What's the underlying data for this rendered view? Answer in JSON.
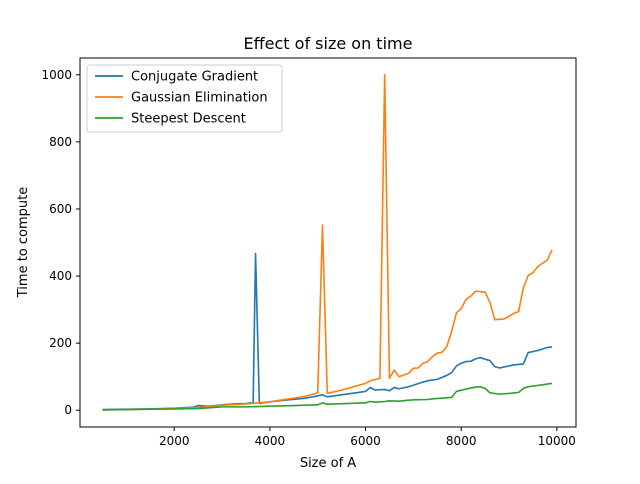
{
  "chart_data": {
    "type": "line",
    "title": "Effect of size on time",
    "xlabel": "Size of A",
    "ylabel": "Time to compute",
    "xlim": [
      30,
      10400
    ],
    "ylim": [
      -50,
      1050
    ],
    "x_ticks": [
      2000,
      4000,
      6000,
      8000,
      10000
    ],
    "y_ticks": [
      0,
      200,
      400,
      600,
      800,
      1000
    ],
    "grid": false,
    "legend_position": "top-left",
    "series": [
      {
        "name": "Conjugate Gradient",
        "color": "#1f77b4",
        "points": [
          [
            500,
            2
          ],
          [
            1000,
            3
          ],
          [
            1500,
            4
          ],
          [
            2000,
            6
          ],
          [
            2400,
            9
          ],
          [
            2500,
            14
          ],
          [
            2700,
            12
          ],
          [
            3000,
            16
          ],
          [
            3300,
            19
          ],
          [
            3500,
            20
          ],
          [
            3600,
            22
          ],
          [
            3650,
            20
          ],
          [
            3700,
            467
          ],
          [
            3780,
            20
          ],
          [
            4000,
            25
          ],
          [
            4300,
            30
          ],
          [
            4700,
            35
          ],
          [
            4900,
            40
          ],
          [
            5100,
            46
          ],
          [
            5200,
            40
          ],
          [
            5500,
            46
          ],
          [
            5800,
            52
          ],
          [
            6000,
            56
          ],
          [
            6100,
            68
          ],
          [
            6200,
            60
          ],
          [
            6400,
            62
          ],
          [
            6500,
            58
          ],
          [
            6600,
            68
          ],
          [
            6700,
            64
          ],
          [
            6900,
            70
          ],
          [
            7200,
            84
          ],
          [
            7300,
            88
          ],
          [
            7500,
            92
          ],
          [
            7700,
            104
          ],
          [
            7800,
            112
          ],
          [
            7900,
            132
          ],
          [
            8000,
            140
          ],
          [
            8100,
            145
          ],
          [
            8200,
            146
          ],
          [
            8300,
            153
          ],
          [
            8400,
            157
          ],
          [
            8500,
            152
          ],
          [
            8600,
            148
          ],
          [
            8700,
            130
          ],
          [
            8800,
            126
          ],
          [
            9000,
            132
          ],
          [
            9100,
            135
          ],
          [
            9300,
            138
          ],
          [
            9400,
            172
          ],
          [
            9600,
            178
          ],
          [
            9800,
            187
          ],
          [
            9900,
            189
          ]
        ]
      },
      {
        "name": "Gaussian Elimination",
        "color": "#ff7f0e",
        "points": [
          [
            500,
            1
          ],
          [
            1000,
            2
          ],
          [
            1500,
            3
          ],
          [
            2000,
            5
          ],
          [
            2500,
            8
          ],
          [
            2700,
            11
          ],
          [
            3000,
            15
          ],
          [
            3300,
            17
          ],
          [
            3600,
            20
          ],
          [
            4000,
            25
          ],
          [
            4300,
            32
          ],
          [
            4700,
            40
          ],
          [
            4900,
            48
          ],
          [
            5000,
            52
          ],
          [
            5100,
            552
          ],
          [
            5200,
            50
          ],
          [
            5500,
            60
          ],
          [
            5800,
            72
          ],
          [
            6000,
            80
          ],
          [
            6100,
            88
          ],
          [
            6300,
            95
          ],
          [
            6400,
            1000
          ],
          [
            6500,
            95
          ],
          [
            6600,
            120
          ],
          [
            6700,
            100
          ],
          [
            6900,
            110
          ],
          [
            7000,
            125
          ],
          [
            7100,
            126
          ],
          [
            7200,
            140
          ],
          [
            7300,
            145
          ],
          [
            7400,
            160
          ],
          [
            7500,
            170
          ],
          [
            7600,
            173
          ],
          [
            7700,
            190
          ],
          [
            7800,
            235
          ],
          [
            7900,
            290
          ],
          [
            8000,
            303
          ],
          [
            8100,
            330
          ],
          [
            8200,
            340
          ],
          [
            8300,
            355
          ],
          [
            8500,
            352
          ],
          [
            8600,
            322
          ],
          [
            8700,
            270
          ],
          [
            8900,
            272
          ],
          [
            9000,
            280
          ],
          [
            9100,
            289
          ],
          [
            9200,
            294
          ],
          [
            9300,
            365
          ],
          [
            9400,
            402
          ],
          [
            9500,
            410
          ],
          [
            9600,
            428
          ],
          [
            9800,
            448
          ],
          [
            9900,
            478
          ]
        ]
      },
      {
        "name": "Steepest Descent",
        "color": "#2ca02c",
        "points": [
          [
            500,
            1
          ],
          [
            1000,
            2
          ],
          [
            1500,
            3
          ],
          [
            2000,
            4
          ],
          [
            2500,
            5
          ],
          [
            2800,
            8
          ],
          [
            3000,
            10
          ],
          [
            3500,
            10
          ],
          [
            4000,
            12
          ],
          [
            4500,
            14
          ],
          [
            5000,
            16
          ],
          [
            5100,
            22
          ],
          [
            5200,
            18
          ],
          [
            5600,
            20
          ],
          [
            6000,
            22
          ],
          [
            6100,
            26
          ],
          [
            6200,
            24
          ],
          [
            6400,
            26
          ],
          [
            6500,
            28
          ],
          [
            6700,
            27
          ],
          [
            6900,
            30
          ],
          [
            7000,
            31
          ],
          [
            7300,
            32
          ],
          [
            7400,
            34
          ],
          [
            7600,
            36
          ],
          [
            7800,
            38
          ],
          [
            7900,
            56
          ],
          [
            8100,
            63
          ],
          [
            8300,
            69
          ],
          [
            8400,
            70
          ],
          [
            8500,
            65
          ],
          [
            8600,
            52
          ],
          [
            8800,
            48
          ],
          [
            9000,
            50
          ],
          [
            9200,
            53
          ],
          [
            9300,
            65
          ],
          [
            9400,
            70
          ],
          [
            9600,
            74
          ],
          [
            9800,
            78
          ],
          [
            9900,
            80
          ]
        ]
      }
    ]
  }
}
